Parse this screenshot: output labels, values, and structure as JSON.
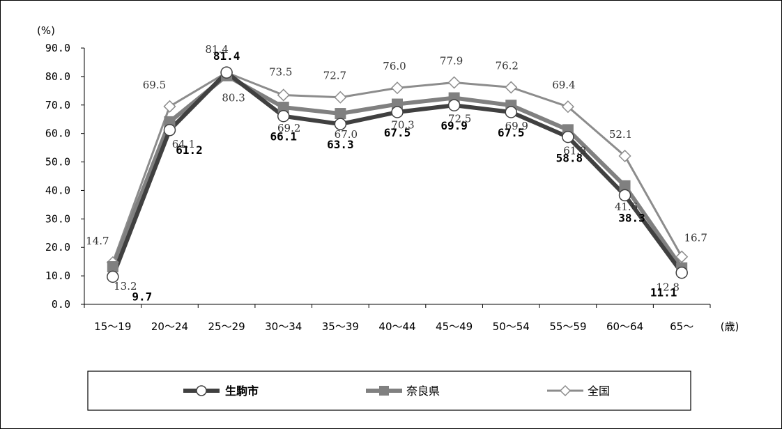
{
  "chart_data": {
    "type": "line",
    "ylabel": "(%)",
    "xlabel": "(歳)",
    "ylim": [
      0,
      90
    ],
    "yticks": [
      "0.0",
      "10.0",
      "20.0",
      "30.0",
      "40.0",
      "50.0",
      "60.0",
      "70.0",
      "80.0",
      "90.0"
    ],
    "categories": [
      "15～19",
      "20～24",
      "25～29",
      "30～34",
      "35～39",
      "40～44",
      "45～49",
      "50～54",
      "55～59",
      "60～64",
      "65～"
    ],
    "legend_position": "bottom",
    "series": [
      {
        "name": "生駒市",
        "color": "#404040",
        "marker": "circle",
        "values": [
          9.7,
          61.2,
          81.4,
          66.1,
          63.3,
          67.5,
          69.9,
          67.5,
          58.8,
          38.3,
          11.1
        ],
        "labels": [
          "9.7",
          "61.2",
          "81.4",
          "66.1",
          "63.3",
          "67.5",
          "69.9",
          "67.5",
          "58.8",
          "38.3",
          "11.1"
        ]
      },
      {
        "name": "奈良県",
        "color": "#808080",
        "marker": "square",
        "values": [
          13.2,
          64.1,
          80.3,
          69.2,
          67.0,
          70.3,
          72.5,
          69.9,
          61.3,
          41.6,
          12.8
        ],
        "labels": [
          "13.2",
          "64.1",
          "80.3",
          "69.2",
          "67.0",
          "70.3",
          "72.5",
          "69.9",
          "61.3",
          "41.6",
          "12.8"
        ]
      },
      {
        "name": "全国",
        "color": "#8c8c8c",
        "marker": "diamond",
        "values": [
          14.7,
          69.5,
          81.4,
          73.5,
          72.7,
          76.0,
          77.9,
          76.2,
          69.4,
          52.1,
          16.7
        ],
        "labels": [
          "14.7",
          "69.5",
          "81.4",
          "73.5",
          "72.7",
          "76.0",
          "77.9",
          "76.2",
          "69.4",
          "52.1",
          "16.7"
        ]
      }
    ]
  }
}
